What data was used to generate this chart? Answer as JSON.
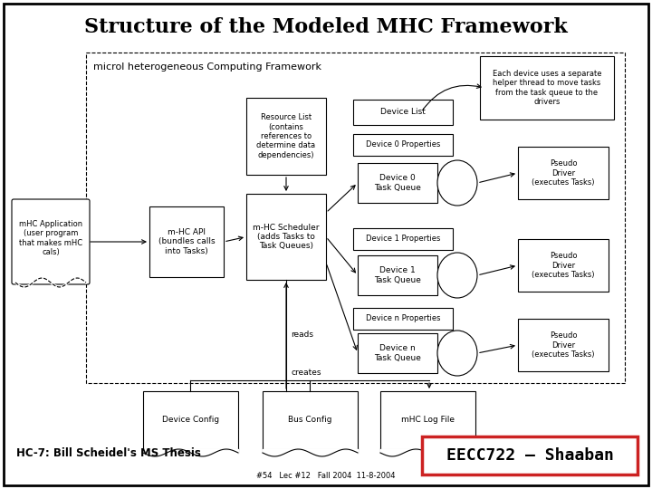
{
  "title": "Structure of the Modeled MHC Framework",
  "bg_color": "#ffffff",
  "main_framework_label": "microl heterogeneous Computing Framework",
  "note_text": "Each device uses a separate\nhelper thread to move tasks\nfrom the task queue to the\ndrivers",
  "bottom_left_text": "HC-7: Bill Scheidel's MS Thesis",
  "bottom_right_text": "EECC722 – Shaaban",
  "bottom_center_text": "#54   Lec #12   Fall 2004  11-8-2004",
  "reads_label": "reads",
  "creates_label": "creates"
}
